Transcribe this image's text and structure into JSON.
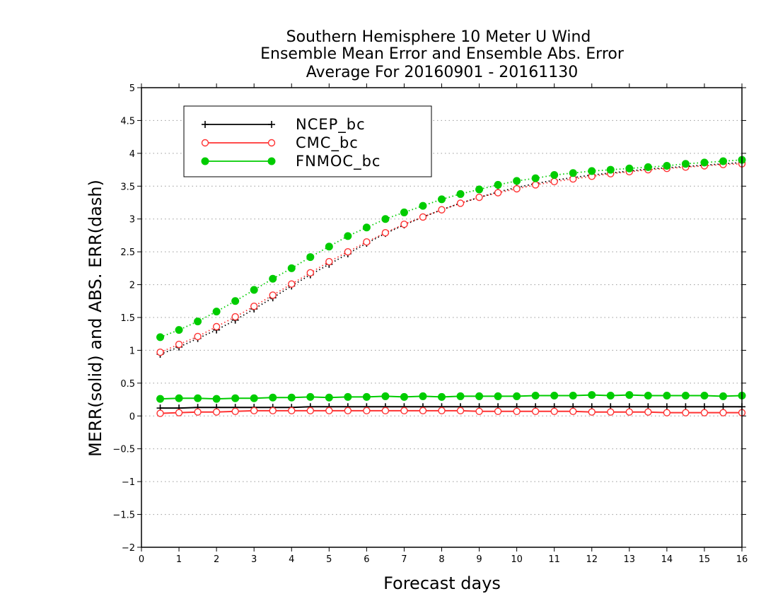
{
  "chart_data": {
    "type": "line",
    "title_lines": [
      "Southern Hemisphere 10 Meter U Wind",
      "Ensemble Mean Error and Ensemble Abs. Error",
      "Average For 20160901 - 20161130"
    ],
    "xlabel": "Forecast days",
    "ylabel": "MERR(solid) and ABS. ERR(dash)",
    "xlim": [
      0,
      16
    ],
    "ylim": [
      -2,
      5
    ],
    "x_ticks": [
      "0",
      "1",
      "2",
      "3",
      "4",
      "5",
      "6",
      "7",
      "8",
      "9",
      "10",
      "11",
      "12",
      "13",
      "14",
      "15",
      "16"
    ],
    "y_ticks": [
      "−2",
      "−1.5",
      "−1",
      "−0.5",
      "0",
      "0.5",
      "1",
      "1.5",
      "2",
      "2.5",
      "3",
      "3.5",
      "4",
      "4.5",
      "5"
    ],
    "grid": "horizontal dotted",
    "legend_position": "top-left",
    "x": [
      0.5,
      1,
      1.5,
      2,
      2.5,
      3,
      3.5,
      4,
      4.5,
      5,
      5.5,
      6,
      6.5,
      7,
      7.5,
      8,
      8.5,
      9,
      9.5,
      10,
      10.5,
      11,
      11.5,
      12,
      12.5,
      13,
      13.5,
      14,
      14.5,
      15,
      15.5,
      16
    ],
    "series": [
      {
        "name": "NCEP_bc",
        "color": "#000000",
        "marker": "plus",
        "merr": [
          0.12,
          0.12,
          0.13,
          0.13,
          0.13,
          0.13,
          0.13,
          0.13,
          0.14,
          0.14,
          0.14,
          0.14,
          0.14,
          0.14,
          0.14,
          0.14,
          0.14,
          0.14,
          0.14,
          0.14,
          0.14,
          0.14,
          0.14,
          0.14,
          0.14,
          0.14,
          0.14,
          0.14,
          0.14,
          0.14,
          0.14,
          0.14
        ],
        "abs_err": [
          0.94,
          1.05,
          1.18,
          1.31,
          1.46,
          1.63,
          1.8,
          1.98,
          2.15,
          2.31,
          2.47,
          2.63,
          2.78,
          2.91,
          3.03,
          3.14,
          3.24,
          3.33,
          3.41,
          3.48,
          3.54,
          3.59,
          3.63,
          3.67,
          3.7,
          3.73,
          3.76,
          3.78,
          3.8,
          3.82,
          3.84,
          3.86
        ]
      },
      {
        "name": "CMC_bc",
        "color": "#ff3333",
        "marker": "open-circle",
        "merr": [
          0.04,
          0.05,
          0.06,
          0.06,
          0.07,
          0.08,
          0.08,
          0.08,
          0.08,
          0.08,
          0.08,
          0.08,
          0.08,
          0.08,
          0.08,
          0.08,
          0.08,
          0.07,
          0.07,
          0.07,
          0.07,
          0.07,
          0.07,
          0.06,
          0.06,
          0.06,
          0.06,
          0.05,
          0.05,
          0.05,
          0.05,
          0.05
        ],
        "abs_err": [
          0.97,
          1.09,
          1.21,
          1.36,
          1.51,
          1.67,
          1.84,
          2.01,
          2.18,
          2.35,
          2.5,
          2.65,
          2.79,
          2.92,
          3.03,
          3.14,
          3.24,
          3.33,
          3.4,
          3.46,
          3.52,
          3.57,
          3.61,
          3.65,
          3.69,
          3.72,
          3.75,
          3.77,
          3.79,
          3.81,
          3.83,
          3.84
        ]
      },
      {
        "name": "FNMOC_bc",
        "color": "#00cc00",
        "marker": "filled-circle",
        "merr": [
          0.26,
          0.27,
          0.27,
          0.26,
          0.27,
          0.27,
          0.28,
          0.28,
          0.29,
          0.28,
          0.29,
          0.29,
          0.3,
          0.29,
          0.3,
          0.29,
          0.3,
          0.3,
          0.3,
          0.3,
          0.31,
          0.31,
          0.31,
          0.32,
          0.31,
          0.32,
          0.31,
          0.31,
          0.31,
          0.31,
          0.3,
          0.31
        ],
        "abs_err": [
          1.2,
          1.31,
          1.44,
          1.59,
          1.75,
          1.92,
          2.09,
          2.25,
          2.42,
          2.58,
          2.74,
          2.87,
          3.0,
          3.1,
          3.2,
          3.3,
          3.38,
          3.45,
          3.52,
          3.58,
          3.62,
          3.67,
          3.7,
          3.73,
          3.75,
          3.77,
          3.79,
          3.81,
          3.84,
          3.86,
          3.88,
          3.9
        ]
      }
    ]
  }
}
